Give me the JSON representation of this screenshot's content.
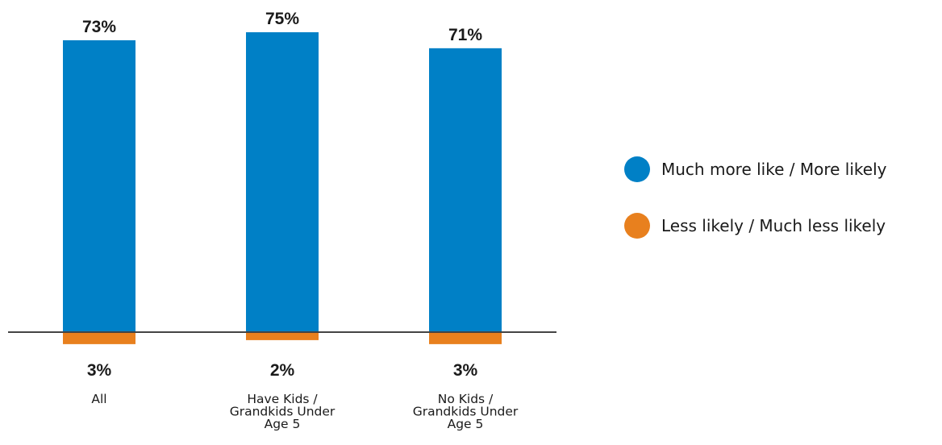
{
  "chart_data": {
    "type": "bar",
    "categories": [
      [
        "All"
      ],
      [
        "Have Kids /",
        "Grandkids Under",
        "Age 5"
      ],
      [
        "No Kids /",
        "Grandkids Under",
        "Age 5"
      ]
    ],
    "series": [
      {
        "name": "Much more like / More likely",
        "values": [
          73,
          75,
          71
        ],
        "labels": [
          "73%",
          "75%",
          "71%"
        ],
        "color": "#0080c6"
      },
      {
        "name": "Less likely / Much less likely",
        "values": [
          3,
          2,
          3
        ],
        "labels": [
          "3%",
          "2%",
          "3%"
        ],
        "color": "#e8801e"
      }
    ],
    "stacking": "diverging",
    "ylim": [
      -3,
      75
    ],
    "baseline": 0,
    "legend_position": "right",
    "grid": false
  },
  "legend": {
    "items": [
      {
        "label": "Much more like / More likely",
        "color": "#0080c6"
      },
      {
        "label": "Less likely / Much less likely",
        "color": "#e8801e"
      }
    ]
  },
  "colors": {
    "axis": "#444444",
    "text": "#1a1a1a"
  }
}
